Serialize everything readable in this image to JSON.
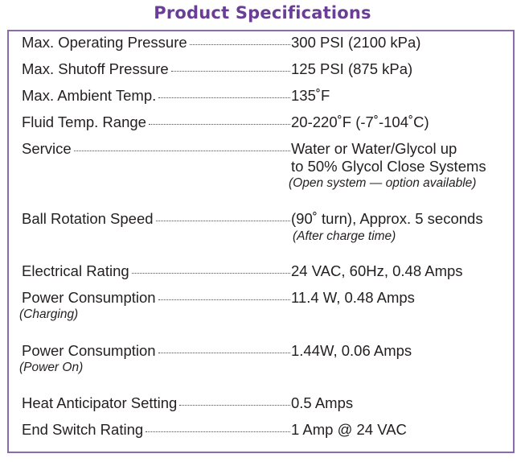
{
  "title": "Product Specifications",
  "specs": [
    {
      "label": "Max. Operating Pressure",
      "value": "300 PSI (2100 kPa)"
    },
    {
      "label": "Max. Shutoff Pressure",
      "value": "125 PSI (875 kPa)"
    },
    {
      "label": "Max. Ambient Temp.",
      "value": "135˚F"
    },
    {
      "label": "Fluid Temp. Range",
      "value": "20-220˚F (-7˚-104˚C)"
    },
    {
      "label": "Service",
      "value": "Water or Water/Glycol up",
      "value_line2": "to 50% Glycol Close Systems",
      "note": "(Open system — option available)"
    },
    {
      "label": "Ball Rotation Speed",
      "value": "(90˚ turn), Approx. 5 seconds",
      "note": "(After charge time)"
    },
    {
      "label": "Electrical Rating",
      "value": "24 VAC, 60Hz, 0.48 Amps"
    },
    {
      "label": "Power Consumption",
      "value": "11.4 W, 0.48 Amps",
      "note": "(Charging)"
    },
    {
      "label": "Power Consumption",
      "value": "1.44W, 0.06 Amps",
      "note": "(Power On)"
    },
    {
      "label": "Heat Anticipator Setting",
      "value": "0.5 Amps"
    },
    {
      "label": "End Switch Rating",
      "value": "1 Amp @ 24 VAC"
    }
  ],
  "colors": {
    "title": "#6a3d97",
    "border": "#8a6bb0",
    "text": "#231f20"
  }
}
